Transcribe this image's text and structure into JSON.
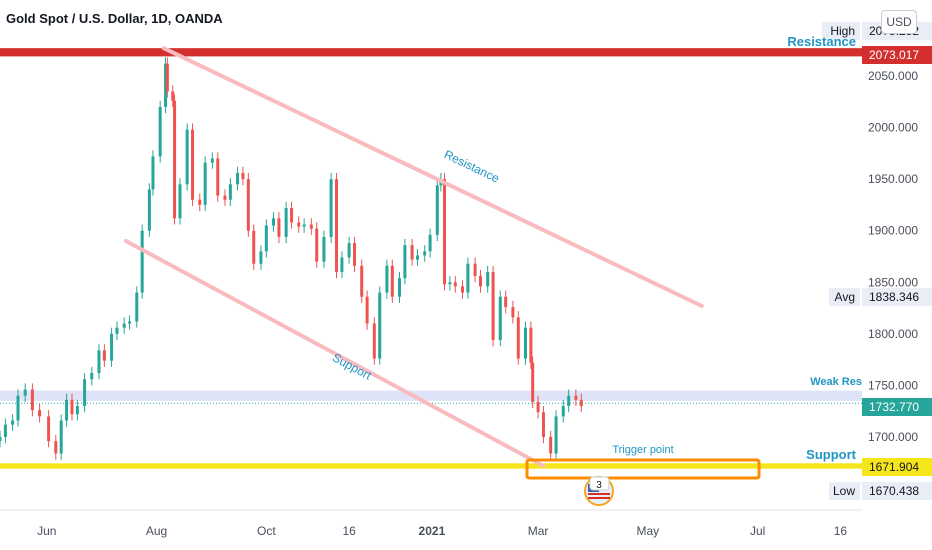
{
  "chart_title": "Gold Spot / U.S. Dollar, 1D, OANDA",
  "currency_button": "USD",
  "colors": {
    "up": "#26a69a",
    "down": "#ef5350",
    "resistance_line": "#d32f2f",
    "channel": "#f8bbc0",
    "support_band": "#f5e51b",
    "trigger_box": "#ff8c00",
    "weak_res_band": "#d6dcf5",
    "annotation_text": "#2196c4",
    "current_price_label": "#26a69a",
    "resistance_label": "#d32f2f",
    "support_label": "#f5e51b"
  },
  "chart_data": {
    "type": "candlestick",
    "symbol": "Gold Spot / U.S. Dollar",
    "interval": "1D",
    "source": "OANDA",
    "y_range": [
      1640,
      2100
    ],
    "y_ticks": [
      1700,
      1750,
      1800,
      1850,
      1900,
      1950,
      2000,
      2050
    ],
    "y_tick_labels": [
      "1700.000",
      "1750.000",
      "1800.000",
      "1850.000",
      "1900.000",
      "1950.000",
      "2000.000",
      "2050.000"
    ],
    "x_ticks": [
      "Jun",
      "Aug",
      "Oct",
      "16",
      "2021",
      "Mar",
      "May",
      "Jul",
      "16"
    ],
    "x_tick_dates": [
      "2020-06-01",
      "2020-08-01",
      "2020-10-01",
      "2020-11-16",
      "2021-01-01",
      "2021-03-01",
      "2021-05-01",
      "2021-07-01",
      "2021-08-16"
    ],
    "x_range": [
      "2020-05-06",
      "2021-08-28"
    ],
    "price_labels": [
      {
        "name": "High",
        "value": "2075.252"
      },
      {
        "name": "Resistance",
        "value": "2073.017"
      },
      {
        "name": "Avg",
        "value": "1838.346"
      },
      {
        "name": "Current",
        "value": "1732.770"
      },
      {
        "name": "Support",
        "value": "1671.904"
      },
      {
        "name": "Low",
        "value": "1670.438"
      }
    ],
    "horizontal_lines": [
      {
        "label": "Resistance",
        "price": 2073.017
      },
      {
        "label": "Support",
        "price": 1671.904
      }
    ],
    "weak_resistance_band": {
      "label": "Weak Res",
      "top": 1745,
      "bottom": 1735
    },
    "current_price_line": 1732.77,
    "channel_upper": {
      "label": "Resistance",
      "from": [
        "2020-08-05",
        2077
      ],
      "to": [
        "2021-05-31",
        1827
      ]
    },
    "channel_lower": {
      "label": "Support",
      "from": [
        "2020-07-15",
        1890
      ],
      "to": [
        "2021-03-04",
        1672
      ]
    },
    "trigger_box": {
      "label": "Trigger point",
      "from_date": "2021-03-01",
      "to_date": "2021-06-16",
      "top": 1677,
      "bottom": 1660
    },
    "event_badge": "3",
    "closes": [
      {
        "d": "2020-05-06",
        "c": 1700
      },
      {
        "d": "2020-05-09",
        "c": 1712
      },
      {
        "d": "2020-05-13",
        "c": 1716
      },
      {
        "d": "2020-05-16",
        "c": 1740
      },
      {
        "d": "2020-05-20",
        "c": 1746
      },
      {
        "d": "2020-05-24",
        "c": 1726
      },
      {
        "d": "2020-05-28",
        "c": 1720
      },
      {
        "d": "2020-06-02",
        "c": 1696
      },
      {
        "d": "2020-06-06",
        "c": 1684
      },
      {
        "d": "2020-06-09",
        "c": 1716
      },
      {
        "d": "2020-06-12",
        "c": 1736
      },
      {
        "d": "2020-06-15",
        "c": 1722
      },
      {
        "d": "2020-06-18",
        "c": 1730
      },
      {
        "d": "2020-06-22",
        "c": 1756
      },
      {
        "d": "2020-06-26",
        "c": 1762
      },
      {
        "d": "2020-06-30",
        "c": 1784
      },
      {
        "d": "2020-07-03",
        "c": 1774
      },
      {
        "d": "2020-07-07",
        "c": 1800
      },
      {
        "d": "2020-07-10",
        "c": 1806
      },
      {
        "d": "2020-07-14",
        "c": 1810
      },
      {
        "d": "2020-07-17",
        "c": 1812
      },
      {
        "d": "2020-07-21",
        "c": 1840
      },
      {
        "d": "2020-07-24",
        "c": 1900
      },
      {
        "d": "2020-07-28",
        "c": 1940
      },
      {
        "d": "2020-07-30",
        "c": 1972
      },
      {
        "d": "2020-08-03",
        "c": 2020
      },
      {
        "d": "2020-08-06",
        "c": 2062
      },
      {
        "d": "2020-08-07",
        "c": 2035
      },
      {
        "d": "2020-08-10",
        "c": 2026
      },
      {
        "d": "2020-08-11",
        "c": 1912
      },
      {
        "d": "2020-08-14",
        "c": 1945
      },
      {
        "d": "2020-08-18",
        "c": 1998
      },
      {
        "d": "2020-08-21",
        "c": 1930
      },
      {
        "d": "2020-08-25",
        "c": 1925
      },
      {
        "d": "2020-08-28",
        "c": 1966
      },
      {
        "d": "2020-09-01",
        "c": 1970
      },
      {
        "d": "2020-09-04",
        "c": 1934
      },
      {
        "d": "2020-09-08",
        "c": 1930
      },
      {
        "d": "2020-09-11",
        "c": 1945
      },
      {
        "d": "2020-09-15",
        "c": 1956
      },
      {
        "d": "2020-09-18",
        "c": 1950
      },
      {
        "d": "2020-09-21",
        "c": 1900
      },
      {
        "d": "2020-09-24",
        "c": 1868
      },
      {
        "d": "2020-09-28",
        "c": 1880
      },
      {
        "d": "2020-10-01",
        "c": 1905
      },
      {
        "d": "2020-10-05",
        "c": 1912
      },
      {
        "d": "2020-10-08",
        "c": 1894
      },
      {
        "d": "2020-10-12",
        "c": 1922
      },
      {
        "d": "2020-10-15",
        "c": 1908
      },
      {
        "d": "2020-10-19",
        "c": 1904
      },
      {
        "d": "2020-10-22",
        "c": 1906
      },
      {
        "d": "2020-10-26",
        "c": 1902
      },
      {
        "d": "2020-10-29",
        "c": 1870
      },
      {
        "d": "2020-11-02",
        "c": 1894
      },
      {
        "d": "2020-11-06",
        "c": 1950
      },
      {
        "d": "2020-11-09",
        "c": 1860
      },
      {
        "d": "2020-11-12",
        "c": 1874
      },
      {
        "d": "2020-11-16",
        "c": 1888
      },
      {
        "d": "2020-11-19",
        "c": 1866
      },
      {
        "d": "2020-11-23",
        "c": 1836
      },
      {
        "d": "2020-11-26",
        "c": 1810
      },
      {
        "d": "2020-11-30",
        "c": 1776
      },
      {
        "d": "2020-12-03",
        "c": 1840
      },
      {
        "d": "2020-12-07",
        "c": 1866
      },
      {
        "d": "2020-12-10",
        "c": 1836
      },
      {
        "d": "2020-12-14",
        "c": 1854
      },
      {
        "d": "2020-12-17",
        "c": 1886
      },
      {
        "d": "2020-12-21",
        "c": 1872
      },
      {
        "d": "2020-12-24",
        "c": 1876
      },
      {
        "d": "2020-12-28",
        "c": 1880
      },
      {
        "d": "2020-12-31",
        "c": 1896
      },
      {
        "d": "2021-01-04",
        "c": 1944
      },
      {
        "d": "2021-01-06",
        "c": 1950
      },
      {
        "d": "2021-01-08",
        "c": 1848
      },
      {
        "d": "2021-01-11",
        "c": 1850
      },
      {
        "d": "2021-01-14",
        "c": 1846
      },
      {
        "d": "2021-01-18",
        "c": 1840
      },
      {
        "d": "2021-01-21",
        "c": 1868
      },
      {
        "d": "2021-01-25",
        "c": 1856
      },
      {
        "d": "2021-01-28",
        "c": 1846
      },
      {
        "d": "2021-02-01",
        "c": 1860
      },
      {
        "d": "2021-02-04",
        "c": 1794
      },
      {
        "d": "2021-02-08",
        "c": 1836
      },
      {
        "d": "2021-02-11",
        "c": 1826
      },
      {
        "d": "2021-02-15",
        "c": 1816
      },
      {
        "d": "2021-02-18",
        "c": 1776
      },
      {
        "d": "2021-02-22",
        "c": 1806
      },
      {
        "d": "2021-02-25",
        "c": 1772
      },
      {
        "d": "2021-02-26",
        "c": 1734
      },
      {
        "d": "2021-03-01",
        "c": 1724
      },
      {
        "d": "2021-03-04",
        "c": 1700
      },
      {
        "d": "2021-03-08",
        "c": 1684
      },
      {
        "d": "2021-03-11",
        "c": 1720
      },
      {
        "d": "2021-03-15",
        "c": 1730
      },
      {
        "d": "2021-03-18",
        "c": 1740
      },
      {
        "d": "2021-03-22",
        "c": 1736
      },
      {
        "d": "2021-03-25",
        "c": 1730
      }
    ]
  },
  "labels": {
    "high": "High",
    "high_value": "2075.252",
    "resistance": "Resistance",
    "resistance_value": "2073.017",
    "avg": "Avg",
    "avg_value": "1838.346",
    "weak_res": "Weak Res",
    "current_value": "1732.770",
    "support": "Support",
    "support_value": "1671.904",
    "low": "Low",
    "low_value": "1670.438",
    "channel_upper": "Resistance",
    "channel_lower": "Support",
    "trigger": "Trigger point",
    "event_badge": "3"
  }
}
